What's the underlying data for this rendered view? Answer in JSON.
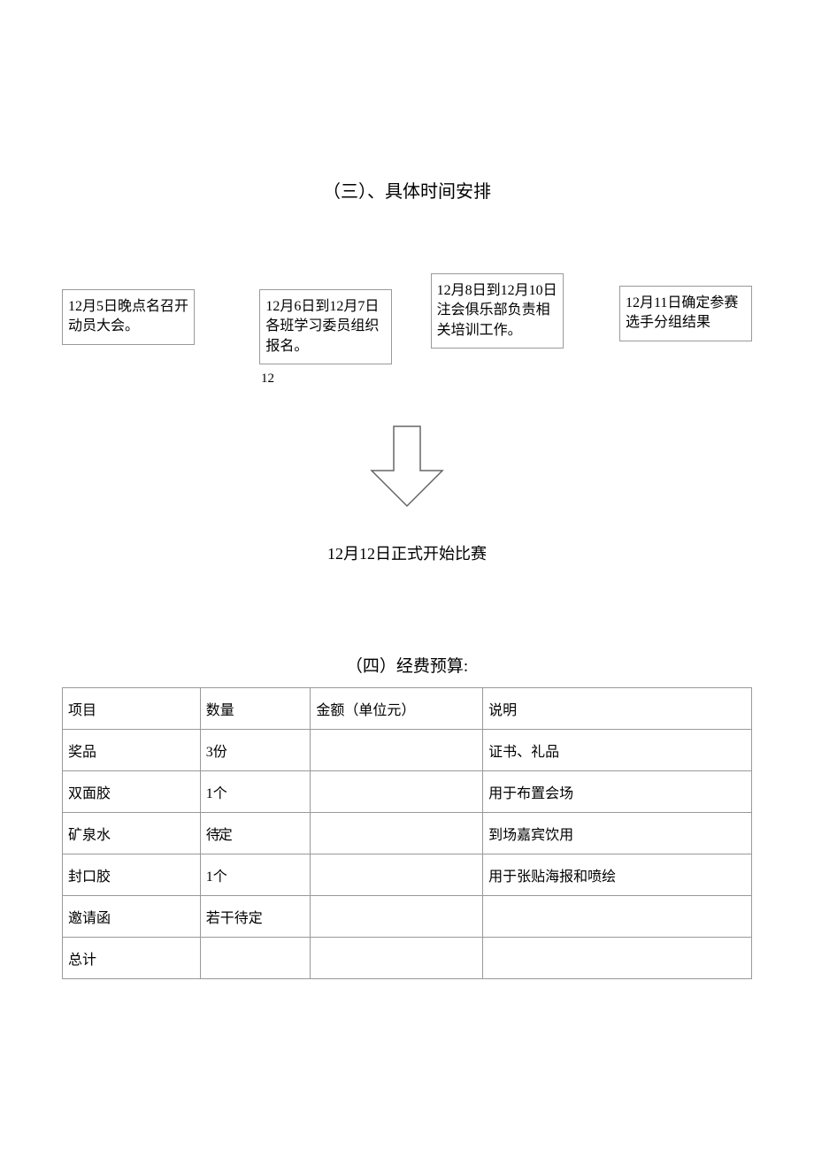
{
  "section3": {
    "title": "（三）、具体时间安排",
    "boxes": [
      "12月5日晚点名召开动员大会。",
      "12月6日到12月7日各班学习委员组织报名。",
      "12月8日到12月10日注会俱乐部负责相关培训工作。",
      "12月11日确定参赛选手分组结果"
    ],
    "box2_extra": "12",
    "middle_text": "12月12日正式开始比赛"
  },
  "arrow": {
    "stroke": "#666666",
    "fill": "#ffffff",
    "width": 90,
    "height": 100
  },
  "section4": {
    "title": "（四）经费预算:",
    "headers": [
      "项目",
      "数量",
      "金额（单位元）",
      "说明"
    ],
    "rows": [
      [
        "奖品",
        "3份",
        "",
        "证书、礼品"
      ],
      [
        "双面胶",
        "1个",
        "",
        "用于布置会场"
      ],
      [
        "矿泉水",
        "待定",
        "",
        "到场嘉宾饮用"
      ],
      [
        "封口胶",
        "1个",
        "",
        "用于张贴海报和喷绘"
      ],
      [
        "邀请函",
        "若干待定",
        "",
        ""
      ],
      [
        "总计",
        "",
        "",
        ""
      ]
    ],
    "big_cell_row": 2,
    "big_cell_col": 1
  },
  "colors": {
    "border": "#999999",
    "text": "#000000",
    "bg": "#ffffff"
  }
}
